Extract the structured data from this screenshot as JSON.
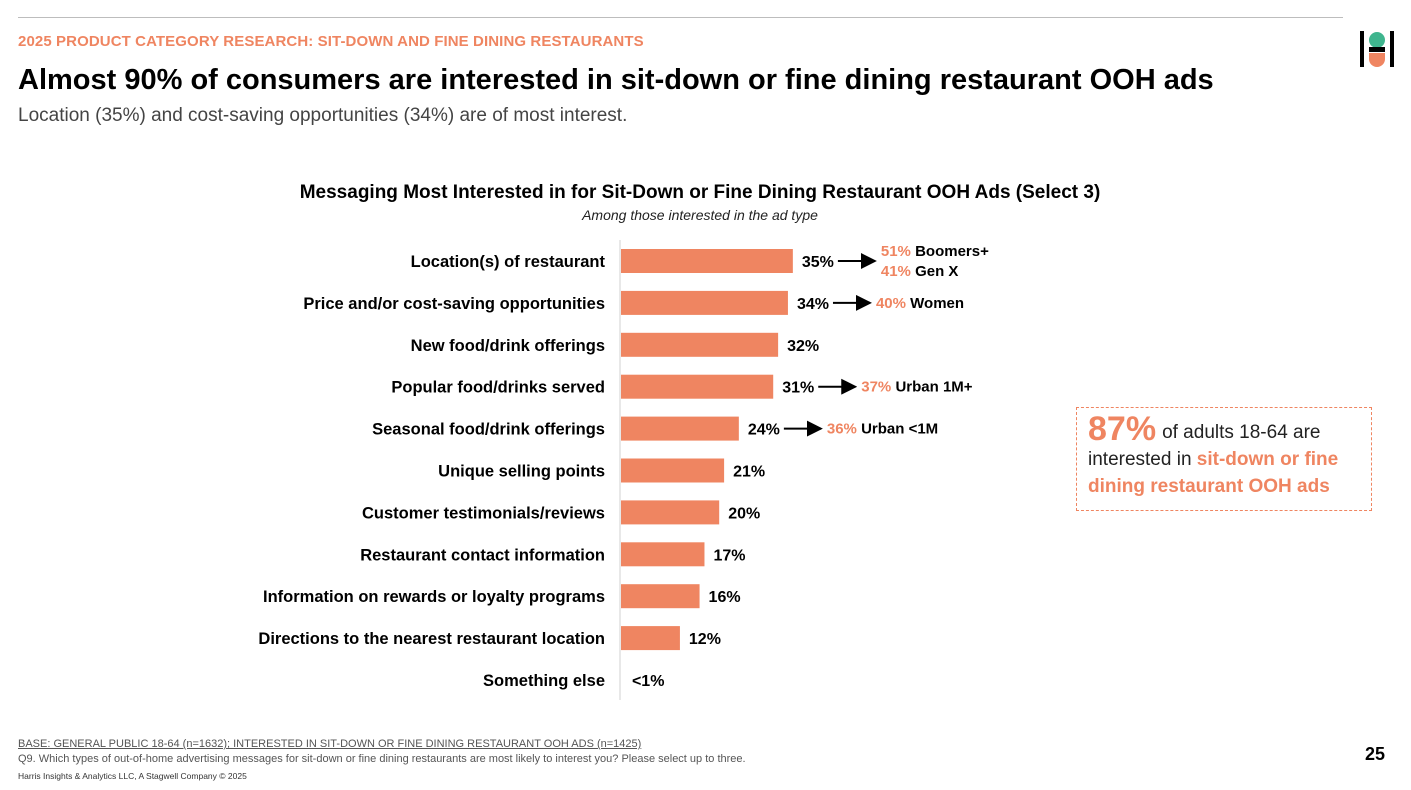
{
  "header": {
    "eyebrow": "2025 PRODUCT CATEGORY RESEARCH: SIT-DOWN AND FINE DINING RESTAURANTS",
    "headline": "Almost 90% of consumers are interested in sit-down or fine dining restaurant OOH ads",
    "subhead": "Location (35%) and cost-saving opportunities (34%) are of most interest."
  },
  "colors": {
    "accent": "#ef8561",
    "bar": "#ef8561",
    "axis": "#d0d0d0"
  },
  "chart_data": {
    "type": "bar",
    "orientation": "horizontal",
    "title": "Messaging Most Interested in for Sit-Down or Fine Dining Restaurant OOH Ads (Select 3)",
    "subtitle": "Among those interested in the ad type",
    "categories": [
      "Location(s) of restaurant",
      "Price and/or cost-saving opportunities",
      "New food/drink offerings",
      "Popular food/drinks served",
      "Seasonal food/drink offerings",
      "Unique selling points",
      "Customer testimonials/reviews",
      "Restaurant contact information",
      "Information on rewards or loyalty programs",
      "Directions to the nearest restaurant location",
      "Something else"
    ],
    "values": [
      35,
      34,
      32,
      31,
      24,
      21,
      20,
      17,
      16,
      12,
      0.4
    ],
    "value_labels": [
      "35%",
      "34%",
      "32%",
      "31%",
      "24%",
      "21%",
      "20%",
      "17%",
      "16%",
      "12%",
      "<1%"
    ],
    "annotations": [
      {
        "row": 0,
        "items": [
          {
            "value": "51%",
            "group": "Boomers+"
          },
          {
            "value": "41%",
            "group": "Gen X"
          }
        ]
      },
      {
        "row": 1,
        "items": [
          {
            "value": "40%",
            "group": "Women"
          }
        ]
      },
      {
        "row": 3,
        "items": [
          {
            "value": "37%",
            "group": "Urban 1M+"
          }
        ]
      },
      {
        "row": 4,
        "items": [
          {
            "value": "36%",
            "group": "Urban <1M"
          }
        ]
      }
    ]
  },
  "callout": {
    "stat": "87%",
    "text_pre": "of adults 18-64 are interested in",
    "highlight": "sit-down or fine dining restaurant OOH ads"
  },
  "footer": {
    "base": "BASE: GENERAL PUBLIC 18-64 (n=1632); INTERESTED IN SIT-DOWN OR FINE DINING RESTAURANT OOH ADS (n=1425)",
    "question": "Q9. Which types of out-of-home advertising messages for sit-down or fine dining restaurants are most likely to interest you? Please select up to three.",
    "copyright": "Harris Insights & Analytics LLC, A Stagwell Company © 2025",
    "page_number": "25"
  }
}
